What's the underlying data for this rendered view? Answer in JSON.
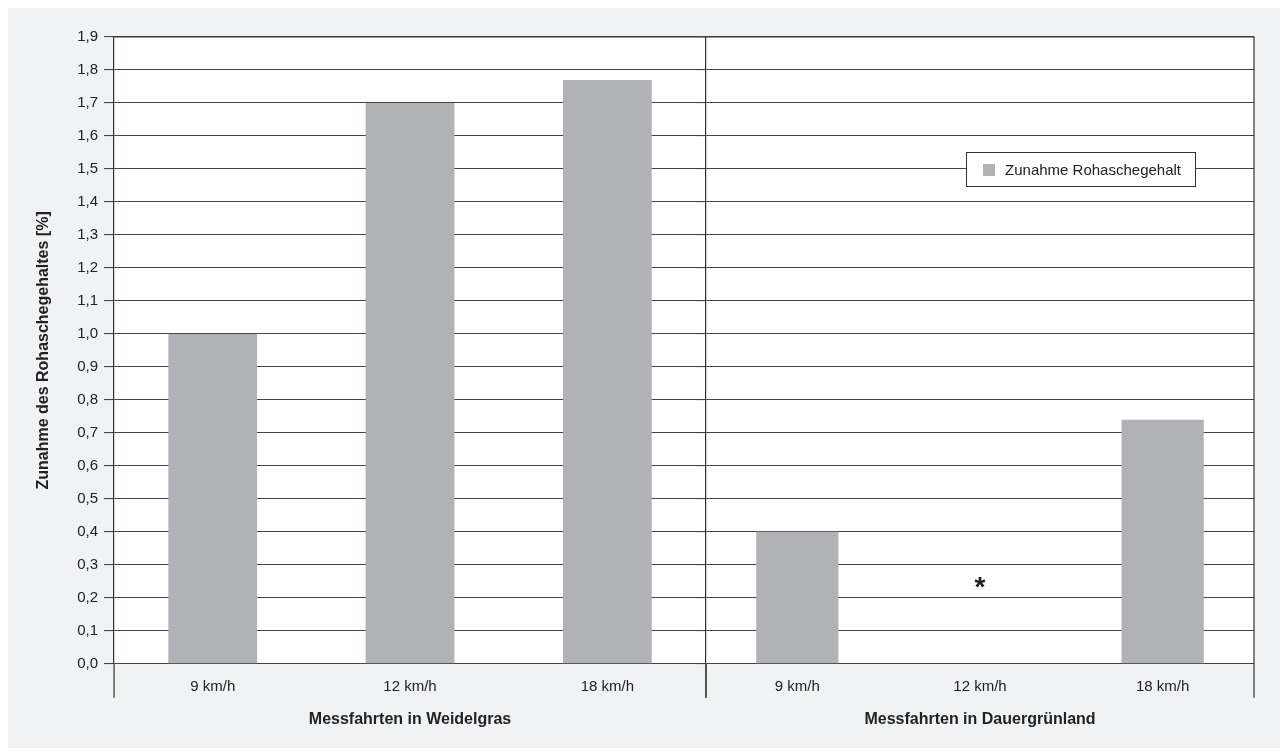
{
  "chart_data": [
    {
      "type": "bar",
      "ylabel": "Zunahme des Rohaschegehaltes [%]",
      "xlabel": "Messfahrten in Weidelgras",
      "categories": [
        "9 km/h",
        "12 km/h",
        "18 km/h"
      ],
      "series": [
        {
          "color": "#b1b2b6",
          "values": [
            1.0,
            1.7,
            1.77
          ]
        }
      ],
      "ylim": [
        0,
        1.9
      ],
      "yticks": [
        {
          "value": 0,
          "label": "0,0"
        },
        {
          "value": 0.1,
          "label": "0,1"
        },
        {
          "value": 0.2,
          "label": "0,2"
        },
        {
          "value": 0.3,
          "label": "0,3"
        },
        {
          "value": 0.4,
          "label": "0,4"
        },
        {
          "value": 0.5,
          "label": "0,5"
        },
        {
          "value": 0.6,
          "label": "0,6"
        },
        {
          "value": 0.7,
          "label": "0,7"
        },
        {
          "value": 0.8,
          "label": "0,8"
        },
        {
          "value": 0.9,
          "label": "0,9"
        },
        {
          "value": 1.0,
          "label": "1,0"
        },
        {
          "value": 1.1,
          "label": "1,1"
        },
        {
          "value": 1.2,
          "label": "1,2"
        },
        {
          "value": 1.3,
          "label": "1,3"
        },
        {
          "value": 1.4,
          "label": "1,4"
        },
        {
          "value": 1.5,
          "label": "1,5"
        },
        {
          "value": 1.6,
          "label": "1,6"
        },
        {
          "value": 1.7,
          "label": "1,7"
        },
        {
          "value": 1.8,
          "label": "1,8"
        },
        {
          "value": 1.9,
          "label": "1,9"
        }
      ],
      "grid": "y"
    },
    {
      "type": "bar",
      "xlabel": "Messfahrten in Dauergrünland",
      "categories": [
        "9 km/h",
        "12 km/h",
        "18 km/h"
      ],
      "series": [
        {
          "name": "Zunahme Rohaschegehalt",
          "color": "#b1b2b6",
          "values": [
            0.4,
            null,
            0.74
          ]
        }
      ],
      "ylim": [
        0,
        1.9
      ],
      "yticks": [
        0,
        0.1,
        0.2,
        0.3,
        0.4,
        0.5,
        0.6,
        0.7,
        0.8,
        0.9,
        1.0,
        1.1,
        1.2,
        1.3,
        1.4,
        1.5,
        1.6,
        1.7,
        1.8,
        1.9
      ],
      "grid": "y",
      "tick_labels": "x",
      "legend": "top right",
      "annotations": [
        "*"
      ]
    }
  ]
}
